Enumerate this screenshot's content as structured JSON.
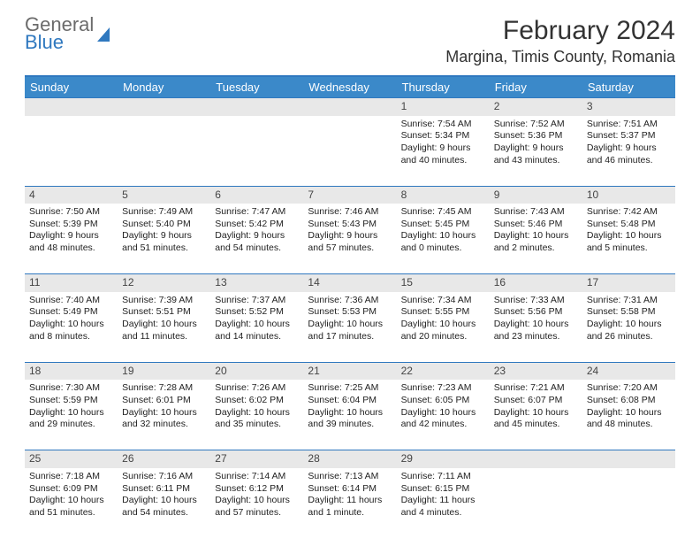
{
  "logo": {
    "line1": "General",
    "line2": "Blue"
  },
  "title": "February 2024",
  "location": "Margina, Timis County, Romania",
  "colors": {
    "header_bg": "#3b89c9",
    "border": "#2f78bf",
    "daynum_bg": "#e8e8e8",
    "text": "#222222",
    "logo_gray": "#6b6b6b",
    "logo_blue": "#2f78bf"
  },
  "weekdays": [
    "Sunday",
    "Monday",
    "Tuesday",
    "Wednesday",
    "Thursday",
    "Friday",
    "Saturday"
  ],
  "weeks": [
    [
      null,
      null,
      null,
      null,
      {
        "n": "1",
        "sr": "7:54 AM",
        "ss": "5:34 PM",
        "dl": "9 hours and 40 minutes."
      },
      {
        "n": "2",
        "sr": "7:52 AM",
        "ss": "5:36 PM",
        "dl": "9 hours and 43 minutes."
      },
      {
        "n": "3",
        "sr": "7:51 AM",
        "ss": "5:37 PM",
        "dl": "9 hours and 46 minutes."
      }
    ],
    [
      {
        "n": "4",
        "sr": "7:50 AM",
        "ss": "5:39 PM",
        "dl": "9 hours and 48 minutes."
      },
      {
        "n": "5",
        "sr": "7:49 AM",
        "ss": "5:40 PM",
        "dl": "9 hours and 51 minutes."
      },
      {
        "n": "6",
        "sr": "7:47 AM",
        "ss": "5:42 PM",
        "dl": "9 hours and 54 minutes."
      },
      {
        "n": "7",
        "sr": "7:46 AM",
        "ss": "5:43 PM",
        "dl": "9 hours and 57 minutes."
      },
      {
        "n": "8",
        "sr": "7:45 AM",
        "ss": "5:45 PM",
        "dl": "10 hours and 0 minutes."
      },
      {
        "n": "9",
        "sr": "7:43 AM",
        "ss": "5:46 PM",
        "dl": "10 hours and 2 minutes."
      },
      {
        "n": "10",
        "sr": "7:42 AM",
        "ss": "5:48 PM",
        "dl": "10 hours and 5 minutes."
      }
    ],
    [
      {
        "n": "11",
        "sr": "7:40 AM",
        "ss": "5:49 PM",
        "dl": "10 hours and 8 minutes."
      },
      {
        "n": "12",
        "sr": "7:39 AM",
        "ss": "5:51 PM",
        "dl": "10 hours and 11 minutes."
      },
      {
        "n": "13",
        "sr": "7:37 AM",
        "ss": "5:52 PM",
        "dl": "10 hours and 14 minutes."
      },
      {
        "n": "14",
        "sr": "7:36 AM",
        "ss": "5:53 PM",
        "dl": "10 hours and 17 minutes."
      },
      {
        "n": "15",
        "sr": "7:34 AM",
        "ss": "5:55 PM",
        "dl": "10 hours and 20 minutes."
      },
      {
        "n": "16",
        "sr": "7:33 AM",
        "ss": "5:56 PM",
        "dl": "10 hours and 23 minutes."
      },
      {
        "n": "17",
        "sr": "7:31 AM",
        "ss": "5:58 PM",
        "dl": "10 hours and 26 minutes."
      }
    ],
    [
      {
        "n": "18",
        "sr": "7:30 AM",
        "ss": "5:59 PM",
        "dl": "10 hours and 29 minutes."
      },
      {
        "n": "19",
        "sr": "7:28 AM",
        "ss": "6:01 PM",
        "dl": "10 hours and 32 minutes."
      },
      {
        "n": "20",
        "sr": "7:26 AM",
        "ss": "6:02 PM",
        "dl": "10 hours and 35 minutes."
      },
      {
        "n": "21",
        "sr": "7:25 AM",
        "ss": "6:04 PM",
        "dl": "10 hours and 39 minutes."
      },
      {
        "n": "22",
        "sr": "7:23 AM",
        "ss": "6:05 PM",
        "dl": "10 hours and 42 minutes."
      },
      {
        "n": "23",
        "sr": "7:21 AM",
        "ss": "6:07 PM",
        "dl": "10 hours and 45 minutes."
      },
      {
        "n": "24",
        "sr": "7:20 AM",
        "ss": "6:08 PM",
        "dl": "10 hours and 48 minutes."
      }
    ],
    [
      {
        "n": "25",
        "sr": "7:18 AM",
        "ss": "6:09 PM",
        "dl": "10 hours and 51 minutes."
      },
      {
        "n": "26",
        "sr": "7:16 AM",
        "ss": "6:11 PM",
        "dl": "10 hours and 54 minutes."
      },
      {
        "n": "27",
        "sr": "7:14 AM",
        "ss": "6:12 PM",
        "dl": "10 hours and 57 minutes."
      },
      {
        "n": "28",
        "sr": "7:13 AM",
        "ss": "6:14 PM",
        "dl": "11 hours and 1 minute."
      },
      {
        "n": "29",
        "sr": "7:11 AM",
        "ss": "6:15 PM",
        "dl": "11 hours and 4 minutes."
      },
      null,
      null
    ]
  ],
  "labels": {
    "sunrise": "Sunrise:",
    "sunset": "Sunset:",
    "daylight": "Daylight:"
  }
}
